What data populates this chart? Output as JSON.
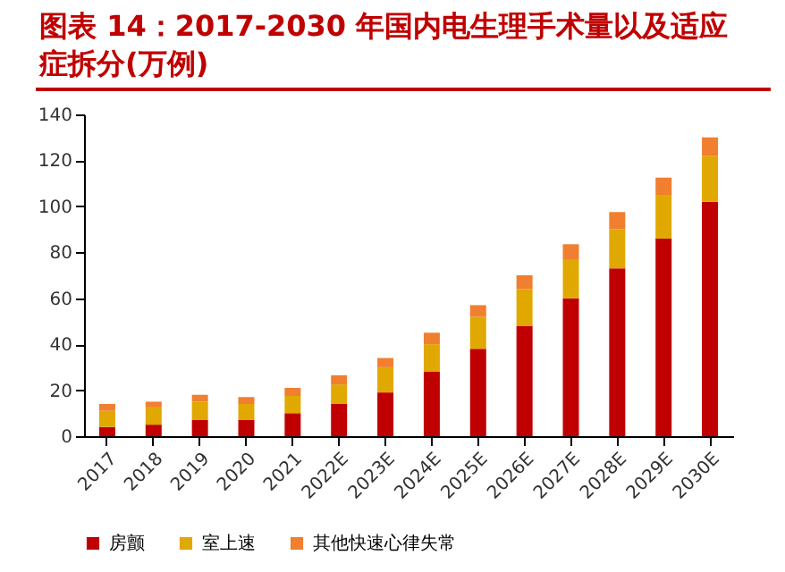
{
  "chart_data": {
    "type": "bar",
    "title": "图表 14：2017-2030 年国内电生理手术量以及适应症拆分(万例)",
    "categories": [
      "2017",
      "2018",
      "2019",
      "2020",
      "2021",
      "2022E",
      "2023E",
      "2024E",
      "2025E",
      "2026E",
      "2027E",
      "2028E",
      "2029E",
      "2030E"
    ],
    "series": [
      {
        "name": "房颤",
        "color": "#c00000",
        "values": [
          4,
          5,
          7,
          7,
          10,
          14,
          19,
          28,
          38,
          48,
          60,
          73,
          86,
          102
        ]
      },
      {
        "name": "室上速",
        "color": "#e0a800",
        "values": [
          7,
          7.5,
          8,
          7,
          7.5,
          8.5,
          11,
          12,
          14,
          16,
          17,
          17,
          19,
          20
        ]
      },
      {
        "name": "其他快速心律失常",
        "color": "#f07f2f",
        "values": [
          3,
          2.5,
          3,
          3,
          3.5,
          4,
          4,
          5,
          5,
          6,
          6.5,
          7.5,
          7.5,
          8
        ]
      }
    ],
    "stacked": true,
    "ylim": [
      0,
      140
    ],
    "yticks": [
      0,
      20,
      40,
      60,
      80,
      100,
      120,
      140
    ],
    "legend": "bottom"
  }
}
